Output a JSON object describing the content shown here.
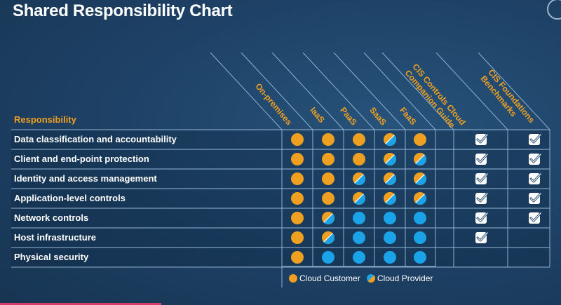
{
  "title": "Shared Responsibility Chart",
  "responsibility_header": "Responsibility",
  "columns": [
    {
      "label": "On-premises"
    },
    {
      "label": "IaaS"
    },
    {
      "label": "PaaS"
    },
    {
      "label": "SaaS"
    },
    {
      "label": "FaaS"
    }
  ],
  "check_columns": [
    {
      "line1": "CIS Controls Cloud",
      "line2": "Companion Guide"
    },
    {
      "line1": "CIS Foundations",
      "line2": "Benchmarks"
    }
  ],
  "rows": [
    {
      "label": "Data classification and accountability",
      "cells": [
        "customer",
        "customer",
        "customer",
        "shared",
        "customer"
      ],
      "checks": [
        true,
        true
      ]
    },
    {
      "label": "Client and end-point protection",
      "cells": [
        "customer",
        "customer",
        "customer",
        "shared",
        "shared"
      ],
      "checks": [
        true,
        true
      ]
    },
    {
      "label": "Identity and access management",
      "cells": [
        "customer",
        "customer",
        "shared",
        "shared",
        "shared"
      ],
      "checks": [
        true,
        true
      ]
    },
    {
      "label": "Application-level controls",
      "cells": [
        "customer",
        "customer",
        "shared",
        "shared",
        "shared"
      ],
      "checks": [
        true,
        true
      ]
    },
    {
      "label": "Network controls",
      "cells": [
        "customer",
        "shared",
        "provider",
        "provider",
        "provider"
      ],
      "checks": [
        true,
        true
      ]
    },
    {
      "label": "Host infrastructure",
      "cells": [
        "customer",
        "shared",
        "provider",
        "provider",
        "provider"
      ],
      "checks": [
        true,
        false
      ]
    },
    {
      "label": "Physical security",
      "cells": [
        "customer",
        "provider",
        "provider",
        "provider",
        "provider"
      ],
      "checks": [
        false,
        false
      ]
    }
  ],
  "legend": {
    "customer": "Cloud Customer",
    "provider": "Cloud Provider"
  },
  "colors": {
    "customer": "#f0a020",
    "provider": "#1aa3e8",
    "header_text": "#f0a020",
    "row_bg": "#1b3a5a",
    "check_box": "#ffffff"
  }
}
